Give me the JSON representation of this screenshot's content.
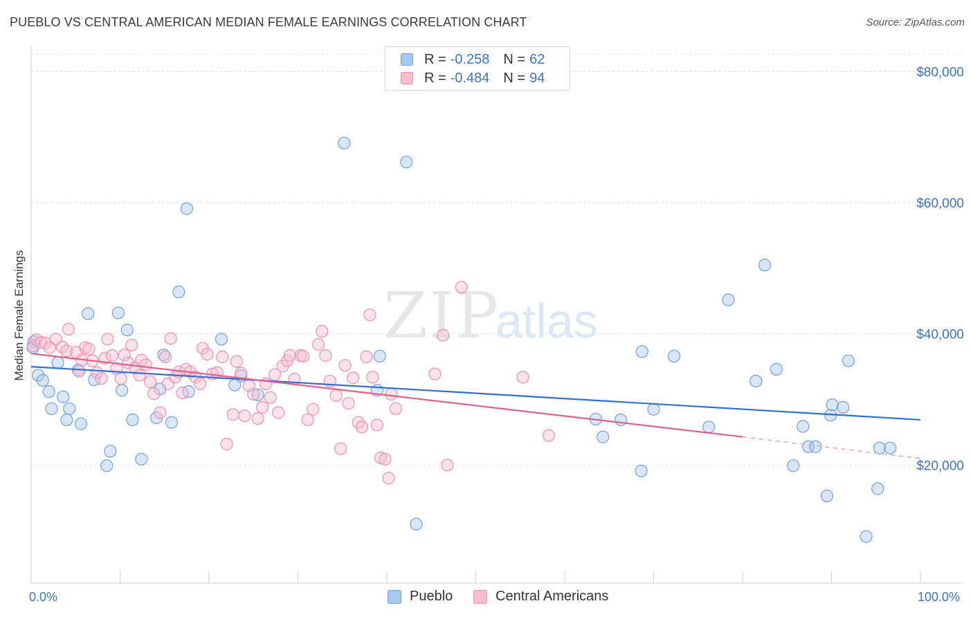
{
  "title": "PUEBLO VS CENTRAL AMERICAN MEDIAN FEMALE EARNINGS CORRELATION CHART",
  "source": "Source: ZipAtlas.com",
  "watermark": {
    "zip": "ZIP",
    "atlas": "atlas"
  },
  "legend": {
    "rows": [
      {
        "r_label": "R =",
        "r_value": "-0.258",
        "n_label": "N =",
        "n_value": "62",
        "color": "#a9c8f0",
        "stroke": "#6f9fdc"
      },
      {
        "r_label": "R =",
        "r_value": "-0.484",
        "n_label": "N =",
        "n_value": "94",
        "color": "#f7bcd0",
        "stroke": "#ec8fb0"
      }
    ]
  },
  "bottom_legend": [
    {
      "label": "Pueblo",
      "color": "#a9c8f0",
      "stroke": "#6f9fdc"
    },
    {
      "label": "Central Americans",
      "color": "#f7bcd0",
      "stroke": "#ec8fb0"
    }
  ],
  "chart_data": {
    "type": "scatter",
    "title": "PUEBLO VS CENTRAL AMERICAN MEDIAN FEMALE EARNINGS CORRELATION CHART",
    "xlabel": "",
    "ylabel": "Median Female Earnings",
    "xlim": [
      0,
      100
    ],
    "ylim": [
      2000,
      83000
    ],
    "x_tick_labels": [
      "0.0%",
      "100.0%"
    ],
    "y_ticks": [
      20000,
      40000,
      60000,
      80000
    ],
    "y_tick_labels": [
      "$20,000",
      "$40,000",
      "$60,000",
      "$80,000"
    ],
    "grid": true,
    "legend_position": "top-center",
    "series": [
      {
        "name": "Pueblo",
        "color": "#6f9fdc",
        "fill": "#a9c8f0",
        "trend": {
          "x": [
            0,
            100
          ],
          "y": [
            35000,
            26900
          ]
        },
        "points": [
          [
            0.3,
            38800
          ],
          [
            0.8,
            33700
          ],
          [
            1.3,
            32900
          ],
          [
            2.0,
            31200
          ],
          [
            2.3,
            28600
          ],
          [
            3.6,
            30400
          ],
          [
            3.0,
            35600
          ],
          [
            4.3,
            28600
          ],
          [
            4.0,
            26900
          ],
          [
            5.3,
            34500
          ],
          [
            5.6,
            26300
          ],
          [
            6.4,
            43100
          ],
          [
            7.1,
            33000
          ],
          [
            8.5,
            19900
          ],
          [
            8.9,
            22100
          ],
          [
            9.8,
            43200
          ],
          [
            10.2,
            31400
          ],
          [
            10.8,
            40600
          ],
          [
            11.4,
            26900
          ],
          [
            12.4,
            20900
          ],
          [
            14.1,
            27200
          ],
          [
            14.5,
            31600
          ],
          [
            14.9,
            36800
          ],
          [
            15.8,
            26500
          ],
          [
            16.6,
            46400
          ],
          [
            17.5,
            59100
          ],
          [
            17.7,
            31200
          ],
          [
            21.4,
            39200
          ],
          [
            22.9,
            32200
          ],
          [
            23.6,
            33600
          ],
          [
            25.5,
            30700
          ],
          [
            35.2,
            69100
          ],
          [
            38.9,
            31400
          ],
          [
            39.2,
            36600
          ],
          [
            42.2,
            66200
          ],
          [
            43.3,
            11000
          ],
          [
            63.5,
            27000
          ],
          [
            64.3,
            24300
          ],
          [
            66.3,
            26900
          ],
          [
            68.6,
            19100
          ],
          [
            70.0,
            28500
          ],
          [
            68.7,
            37300
          ],
          [
            72.3,
            36600
          ],
          [
            76.2,
            25800
          ],
          [
            78.4,
            45200
          ],
          [
            81.5,
            32800
          ],
          [
            82.5,
            50500
          ],
          [
            83.8,
            34600
          ],
          [
            85.7,
            19900
          ],
          [
            86.8,
            25900
          ],
          [
            87.4,
            22800
          ],
          [
            88.2,
            22800
          ],
          [
            89.5,
            15300
          ],
          [
            89.9,
            27600
          ],
          [
            90.1,
            29200
          ],
          [
            91.3,
            28800
          ],
          [
            91.9,
            35900
          ],
          [
            93.9,
            9100
          ],
          [
            95.2,
            16400
          ],
          [
            95.4,
            22600
          ],
          [
            96.6,
            22600
          ],
          [
            0.2,
            37900
          ]
        ]
      },
      {
        "name": "Central Americans",
        "color": "#ec8fb0",
        "fill": "#f7bcd0",
        "trend": {
          "x": [
            0,
            80
          ],
          "y": [
            37000,
            24300
          ],
          "dashed_extension": {
            "x": [
              80,
              100
            ],
            "y": [
              24300,
              21000
            ]
          }
        },
        "points": [
          [
            0.2,
            38200
          ],
          [
            0.6,
            39100
          ],
          [
            1.1,
            38700
          ],
          [
            1.6,
            38600
          ],
          [
            2.1,
            37900
          ],
          [
            2.8,
            39200
          ],
          [
            3.5,
            38000
          ],
          [
            4.0,
            37400
          ],
          [
            4.2,
            40700
          ],
          [
            5.1,
            37200
          ],
          [
            5.4,
            34300
          ],
          [
            5.7,
            36000
          ],
          [
            6.1,
            37900
          ],
          [
            6.5,
            37700
          ],
          [
            6.9,
            35900
          ],
          [
            7.4,
            34100
          ],
          [
            7.9,
            33200
          ],
          [
            8.3,
            36300
          ],
          [
            8.6,
            39200
          ],
          [
            9.1,
            36700
          ],
          [
            9.6,
            34700
          ],
          [
            10.1,
            33200
          ],
          [
            10.5,
            36800
          ],
          [
            10.9,
            35600
          ],
          [
            11.3,
            38300
          ],
          [
            11.7,
            34800
          ],
          [
            12.2,
            33700
          ],
          [
            12.4,
            36000
          ],
          [
            12.9,
            35300
          ],
          [
            13.4,
            32700
          ],
          [
            13.8,
            30900
          ],
          [
            14.5,
            28000
          ],
          [
            15.1,
            36500
          ],
          [
            15.4,
            32400
          ],
          [
            15.7,
            39300
          ],
          [
            16.2,
            33400
          ],
          [
            16.6,
            34200
          ],
          [
            17.0,
            31000
          ],
          [
            17.4,
            34600
          ],
          [
            17.9,
            34200
          ],
          [
            18.5,
            33400
          ],
          [
            19.0,
            32400
          ],
          [
            19.3,
            37800
          ],
          [
            19.8,
            36900
          ],
          [
            20.4,
            33900
          ],
          [
            20.9,
            34100
          ],
          [
            21.5,
            36500
          ],
          [
            22.0,
            23200
          ],
          [
            22.7,
            27700
          ],
          [
            23.1,
            35800
          ],
          [
            23.6,
            34000
          ],
          [
            24.0,
            27500
          ],
          [
            24.5,
            32100
          ],
          [
            25.0,
            30800
          ],
          [
            25.5,
            27100
          ],
          [
            26.0,
            28800
          ],
          [
            26.4,
            32400
          ],
          [
            26.9,
            30300
          ],
          [
            27.4,
            33800
          ],
          [
            27.8,
            28000
          ],
          [
            28.3,
            35100
          ],
          [
            28.8,
            35900
          ],
          [
            29.1,
            36700
          ],
          [
            29.6,
            33100
          ],
          [
            30.3,
            36700
          ],
          [
            30.6,
            36600
          ],
          [
            31.1,
            26900
          ],
          [
            31.7,
            28500
          ],
          [
            32.3,
            38400
          ],
          [
            32.7,
            40400
          ],
          [
            33.1,
            36700
          ],
          [
            33.6,
            32800
          ],
          [
            34.3,
            30600
          ],
          [
            34.8,
            22500
          ],
          [
            35.3,
            35200
          ],
          [
            35.7,
            29400
          ],
          [
            36.2,
            33300
          ],
          [
            36.8,
            26500
          ],
          [
            37.2,
            25800
          ],
          [
            37.7,
            36500
          ],
          [
            38.1,
            42900
          ],
          [
            38.4,
            33400
          ],
          [
            38.9,
            26100
          ],
          [
            39.3,
            21100
          ],
          [
            39.8,
            20900
          ],
          [
            40.2,
            18000
          ],
          [
            40.5,
            30800
          ],
          [
            41.0,
            28600
          ],
          [
            45.4,
            33900
          ],
          [
            46.3,
            39800
          ],
          [
            46.8,
            20000
          ],
          [
            48.4,
            47100
          ],
          [
            55.3,
            33400
          ],
          [
            58.2,
            24500
          ]
        ]
      }
    ]
  }
}
